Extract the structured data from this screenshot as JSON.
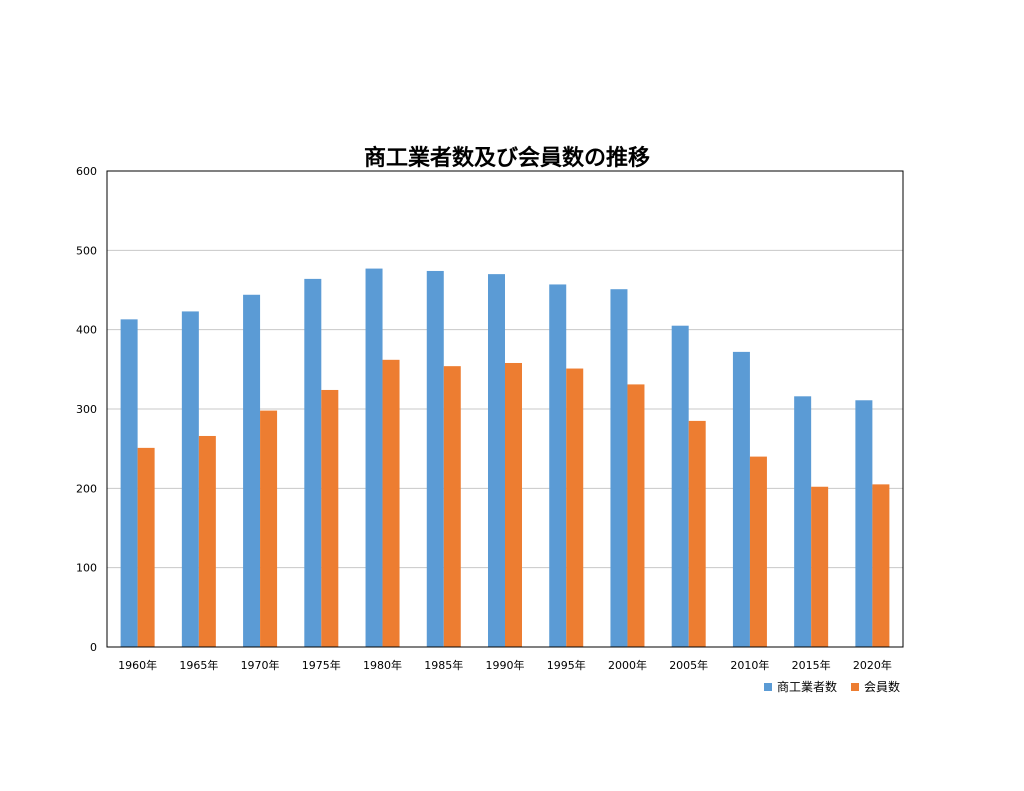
{
  "chart_data": {
    "type": "bar",
    "title": "商工業者数及び会員数の推移",
    "categories": [
      "1960年",
      "1965年",
      "1970年",
      "1975年",
      "1980年",
      "1985年",
      "1990年",
      "1995年",
      "2000年",
      "2005年",
      "2010年",
      "2015年",
      "2020年"
    ],
    "series": [
      {
        "name": "商工業者数",
        "color": "#5b9bd5",
        "values": [
          413,
          423,
          444,
          464,
          477,
          474,
          470,
          457,
          451,
          405,
          372,
          316,
          311
        ]
      },
      {
        "name": "会員数",
        "color": "#ed7d31",
        "values": [
          251,
          266,
          298,
          324,
          362,
          354,
          358,
          351,
          331,
          285,
          240,
          202,
          205
        ]
      }
    ],
    "ylim": [
      0,
      600
    ],
    "yticks": [
      0,
      100,
      200,
      300,
      400,
      500,
      600
    ],
    "grid": true,
    "legend_position": "bottom-right"
  }
}
